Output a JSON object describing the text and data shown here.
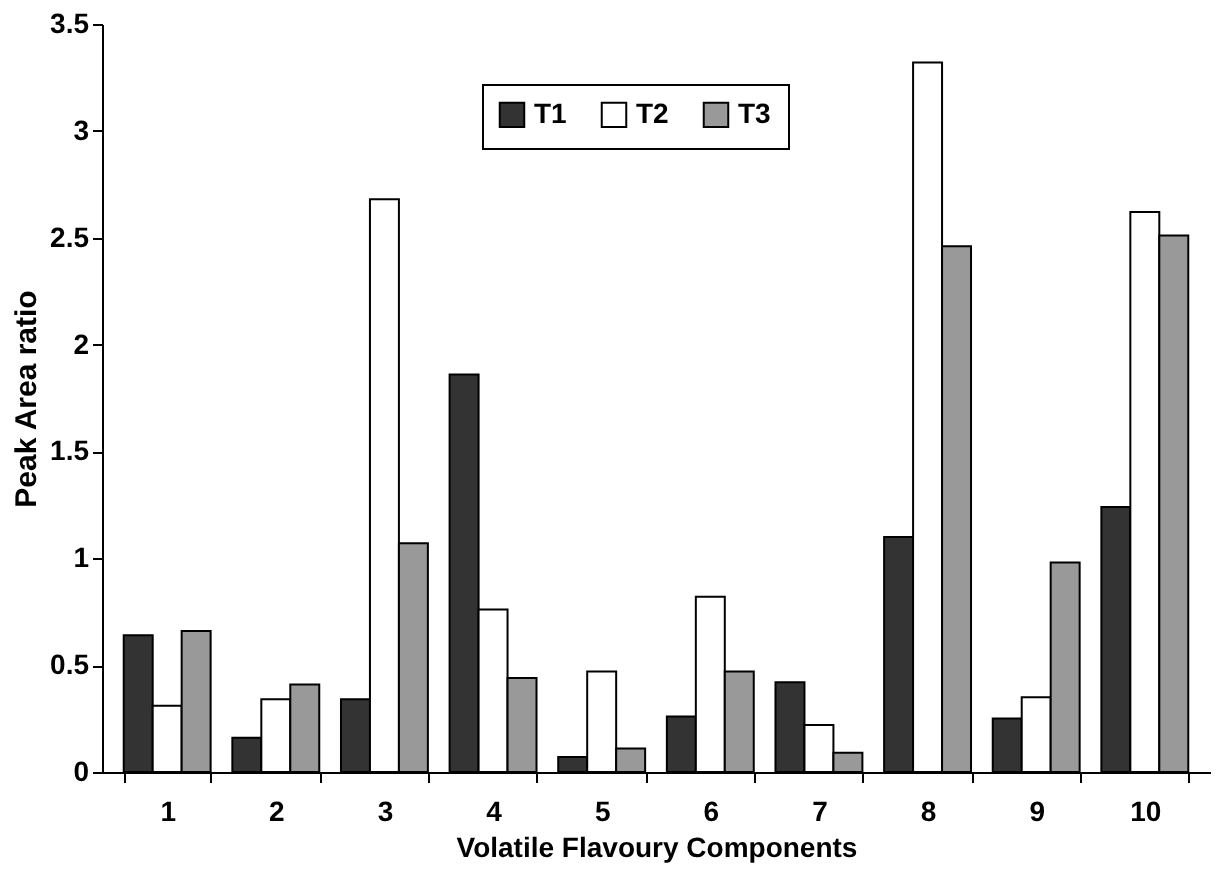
{
  "chart_data": {
    "type": "bar",
    "xlabel": "Volatile Flavoury Components",
    "ylabel": "Peak Area ratio",
    "categories": [
      "1",
      "2",
      "3",
      "4",
      "5",
      "6",
      "7",
      "8",
      "9",
      "10"
    ],
    "series": [
      {
        "name": "T1",
        "color": "#333333",
        "values": [
          0.64,
          0.16,
          0.34,
          1.86,
          0.07,
          0.26,
          0.42,
          1.1,
          0.25,
          1.24
        ]
      },
      {
        "name": "T2",
        "color": "#ffffff",
        "values": [
          0.31,
          0.34,
          2.68,
          0.76,
          0.47,
          0.82,
          0.22,
          3.32,
          0.35,
          2.62
        ]
      },
      {
        "name": "T3",
        "color": "#999999",
        "values": [
          0.66,
          0.41,
          1.07,
          0.44,
          0.11,
          0.47,
          0.09,
          2.46,
          0.98,
          2.51
        ]
      }
    ],
    "ylim": [
      0,
      3.5
    ],
    "yticks": [
      0,
      0.5,
      1,
      1.5,
      2,
      2.5,
      3,
      3.5
    ],
    "grid": false,
    "legend": "top"
  }
}
